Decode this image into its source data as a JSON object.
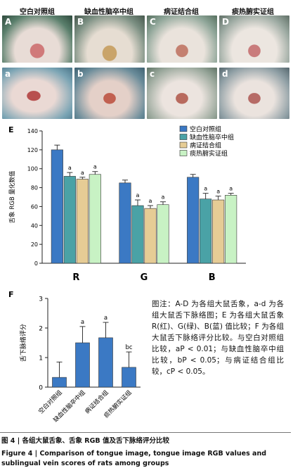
{
  "photos": {
    "group_titles": [
      "空白对照组",
      "缺血性脑卒中组",
      "病证结合组",
      "痰热腑实证组"
    ],
    "labels": [
      "A",
      "B",
      "C",
      "D",
      "a",
      "b",
      "c",
      "d"
    ]
  },
  "chart_data": [
    {
      "type": "bar",
      "panel_label": "E",
      "categories": [
        "R",
        "G",
        "B"
      ],
      "ylabel": "舌象 RGB 量化数值",
      "ylim": [
        0,
        140
      ],
      "yticks": [
        0,
        20,
        40,
        60,
        80,
        100,
        120,
        140
      ],
      "series": [
        {
          "name": "空白对照组",
          "values": [
            120,
            85,
            91
          ],
          "errors": [
            5,
            3,
            3
          ],
          "color": "#3b79c4",
          "sig": [
            "",
            "",
            ""
          ]
        },
        {
          "name": "缺血性脑卒中组",
          "values": [
            92,
            61,
            68
          ],
          "errors": [
            4,
            6,
            6
          ],
          "color": "#4aa2a6",
          "sig": [
            "a",
            "a",
            "a"
          ]
        },
        {
          "name": "病证结合组",
          "values": [
            89,
            58,
            67
          ],
          "errors": [
            2,
            3,
            4
          ],
          "color": "#e6cc95",
          "sig": [
            "a",
            "a",
            "a"
          ]
        },
        {
          "name": "痰热腑实证组",
          "values": [
            94,
            62,
            72
          ],
          "errors": [
            3,
            3,
            2
          ],
          "color": "#c8f2c4",
          "sig": [
            "a",
            "a",
            "a"
          ]
        }
      ],
      "legend_position": "top-right"
    },
    {
      "type": "bar",
      "panel_label": "F",
      "categories": [
        "空白对照组",
        "缺血性脑卒中组",
        "病证结合组",
        "痰热腑实证组"
      ],
      "values": [
        0.33,
        1.5,
        1.67,
        0.67
      ],
      "errors": [
        0.52,
        0.55,
        0.52,
        0.52
      ],
      "sig": [
        "",
        "a",
        "a",
        "bc"
      ],
      "ylabel": "舌下脉络评分",
      "ylim": [
        0,
        3
      ],
      "yticks": [
        0,
        1,
        2,
        3
      ],
      "color": "#3b79c4"
    }
  ],
  "note": "图注：A-D 为各组大鼠舌象，a-d 为各组大鼠舌下脉络图；E 为各组大鼠舌象 R(红)、G(绿)、B(蓝) 值比较；F 为各组大鼠舌下脉络评分比较。与空白对照组比较，aP < 0.01；与缺血性脑卒中组比较，bP < 0.05；与病证结合组比较，cP < 0.05。",
  "caption": {
    "cn": "图 4 | 各组大鼠舌象、舌象 RGB 值及舌下脉络评分比较",
    "en_line1": "Figure 4 | Comparison of tongue image, tongue image RGB values and",
    "en_line2": "sublingual vein scores of rats among groups"
  }
}
